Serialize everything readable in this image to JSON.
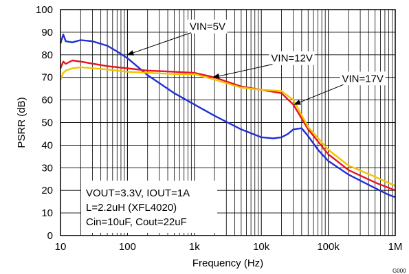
{
  "chart_data": {
    "type": "line",
    "xlabel": "Frequency (Hz)",
    "ylabel": "PSRR (dB)",
    "x_scale": "log",
    "xlim": [
      10,
      1000000
    ],
    "ylim": [
      0,
      100
    ],
    "grid": true,
    "x_ticks": [
      {
        "value": 10,
        "label": "10"
      },
      {
        "value": 100,
        "label": "100"
      },
      {
        "value": 1000,
        "label": "1k"
      },
      {
        "value": 10000,
        "label": "10k"
      },
      {
        "value": 100000,
        "label": "100k"
      },
      {
        "value": 1000000,
        "label": "1M"
      }
    ],
    "y_ticks": [
      0,
      10,
      20,
      30,
      40,
      50,
      60,
      70,
      80,
      90,
      100
    ],
    "series": [
      {
        "name": "VIN=5V",
        "color": "#1f2fd6",
        "points": [
          [
            10,
            85
          ],
          [
            11,
            89
          ],
          [
            12,
            86
          ],
          [
            15,
            85.5
          ],
          [
            20,
            86.5
          ],
          [
            30,
            86
          ],
          [
            50,
            84
          ],
          [
            70,
            81.5
          ],
          [
            100,
            78.5
          ],
          [
            200,
            71
          ],
          [
            500,
            63
          ],
          [
            1000,
            58
          ],
          [
            2000,
            53
          ],
          [
            5000,
            47
          ],
          [
            10000,
            43.5
          ],
          [
            15000,
            43
          ],
          [
            20000,
            43.5
          ],
          [
            25000,
            45
          ],
          [
            30000,
            47
          ],
          [
            40000,
            47.5
          ],
          [
            50000,
            44
          ],
          [
            70000,
            38
          ],
          [
            100000,
            33
          ],
          [
            200000,
            27
          ],
          [
            500000,
            21
          ],
          [
            800000,
            18
          ],
          [
            1000000,
            17
          ]
        ]
      },
      {
        "name": "VIN=12V",
        "color": "#e8141e",
        "points": [
          [
            10,
            74
          ],
          [
            11,
            77
          ],
          [
            12,
            76
          ],
          [
            15,
            77.5
          ],
          [
            20,
            77
          ],
          [
            50,
            75
          ],
          [
            100,
            74
          ],
          [
            200,
            73
          ],
          [
            500,
            72.5
          ],
          [
            1000,
            72
          ],
          [
            2000,
            70
          ],
          [
            5000,
            66
          ],
          [
            10000,
            64.5
          ],
          [
            20000,
            63
          ],
          [
            30000,
            58
          ],
          [
            50000,
            47
          ],
          [
            100000,
            36
          ],
          [
            200000,
            29
          ],
          [
            500000,
            23.5
          ],
          [
            1000000,
            20
          ]
        ]
      },
      {
        "name": "VIN=17V",
        "color": "#f2c400",
        "points": [
          [
            10,
            69
          ],
          [
            11,
            72
          ],
          [
            12,
            73
          ],
          [
            15,
            74
          ],
          [
            20,
            74.5
          ],
          [
            50,
            73.5
          ],
          [
            100,
            72.5
          ],
          [
            200,
            72
          ],
          [
            500,
            71.5
          ],
          [
            1000,
            71.5
          ],
          [
            2000,
            69
          ],
          [
            5000,
            65.5
          ],
          [
            10000,
            64.5
          ],
          [
            20000,
            64
          ],
          [
            30000,
            60
          ],
          [
            50000,
            48
          ],
          [
            100000,
            38
          ],
          [
            200000,
            31
          ],
          [
            500000,
            26
          ],
          [
            1000000,
            22
          ]
        ]
      }
    ],
    "annotations": [
      {
        "text": "VIN=5V",
        "label_x": 850,
        "label_y": 91,
        "arrow_x": 100,
        "arrow_y": 80
      },
      {
        "text": "VIN=12V",
        "label_x": 14000,
        "label_y": 77,
        "arrow_x": 1900,
        "arrow_y": 70
      },
      {
        "text": "VIN=17V",
        "label_x": 160000,
        "label_y": 68,
        "arrow_x": 31000,
        "arrow_y": 58
      }
    ],
    "conditions": [
      "VOUT=3.3V, IOUT=1A",
      "L=2.2uH (XFL4020)",
      "Cin=10uF, Cout=22uF"
    ],
    "figure_id": "G000"
  }
}
